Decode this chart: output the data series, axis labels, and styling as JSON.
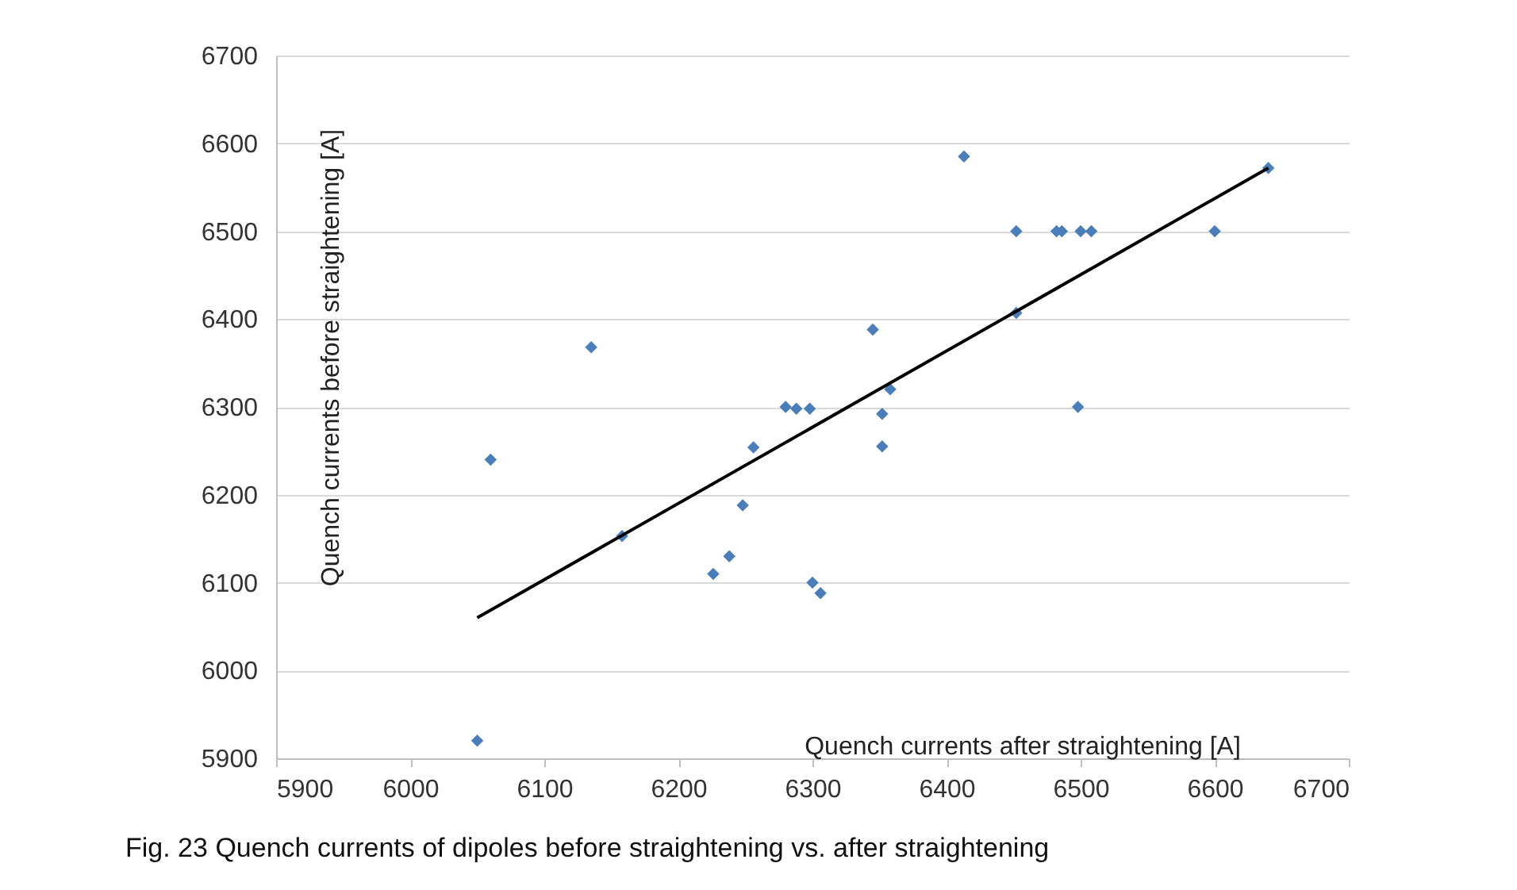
{
  "chart_data": {
    "type": "scatter",
    "xlabel": "Quench currents after straightening [A]",
    "ylabel": "Quench currents before straightening [A]",
    "annotations": [
      "Fig. 23  Quench currents of dipoles before straightening vs. after straightening"
    ],
    "xlim": [
      5900,
      6700
    ],
    "xticks": [
      5900,
      6000,
      6100,
      6200,
      6300,
      6400,
      6500,
      6600,
      6700
    ],
    "ylim": [
      5900,
      6700
    ],
    "yticks": [
      5900,
      6000,
      6100,
      6200,
      6300,
      6400,
      6500,
      6600,
      6700
    ],
    "grid": "y",
    "series": [
      {
        "color": "#4a7ebb",
        "marker": "diamond",
        "x": [
          6050,
          6060,
          6135,
          6158,
          6226,
          6238,
          6248,
          6256,
          6280,
          6288,
          6298,
          6300,
          6306,
          6345,
          6352,
          6352,
          6358,
          6413,
          6452,
          6452,
          6482,
          6486,
          6498,
          6500,
          6508,
          6600,
          6640
        ],
        "values": [
          5920,
          6240,
          6368,
          6153,
          6110,
          6130,
          6188,
          6254,
          6300,
          6298,
          6298,
          6100,
          6088,
          6388,
          6292,
          6255,
          6320,
          6585,
          6500,
          6407,
          6500,
          6500,
          6300,
          6500,
          6500,
          6500,
          6572
        ]
      },
      {
        "type": "line",
        "color": "#000000",
        "x": [
          6050,
          6640
        ],
        "values": [
          6060,
          6572
        ]
      }
    ]
  }
}
